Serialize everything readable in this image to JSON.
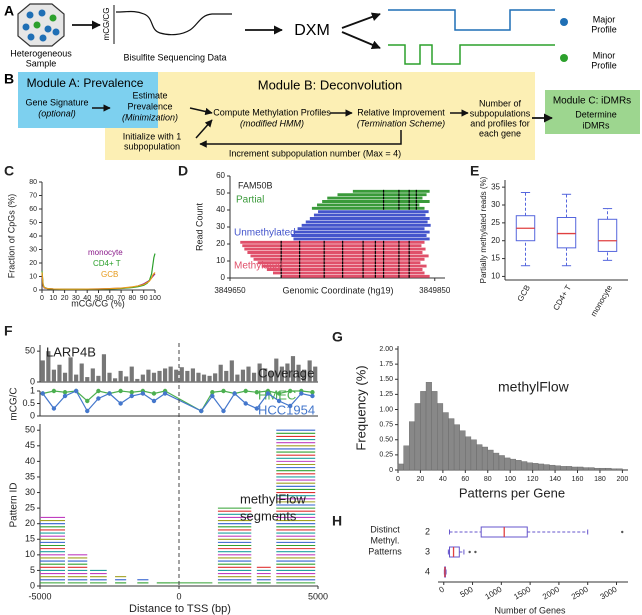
{
  "diagram": {
    "panel_a": {
      "label": "A",
      "sample": [
        "Heterogeneous",
        "Sample"
      ],
      "axis_label": "mCG/CG",
      "data_label": "Bisulfite Sequencing Data",
      "method": "DXM",
      "major": [
        "Major",
        "Profile"
      ],
      "minor": [
        "Minor",
        "Profile"
      ]
    },
    "panel_b": {
      "label": "B",
      "module_a": {
        "title": "Module A: Prevalence",
        "input": [
          "Gene Signature",
          "(optional)"
        ],
        "step": [
          "Estimate",
          "Prevalence",
          "(Minimization)"
        ]
      },
      "module_b": {
        "title": "Module B: Deconvolution",
        "init": [
          "Initialize with 1",
          "subpopulation"
        ],
        "compute": [
          "Compute Methylation Profiles",
          "(modified HMM)"
        ],
        "improve": [
          "Relative Improvement",
          "(Termination Scheme)"
        ],
        "loop": "Increment subpopulation number (Max = 4)",
        "output": [
          "Number of",
          "subpopulations",
          "and profiles for",
          "each gene"
        ]
      },
      "module_c": {
        "title": "Module C: iDMRs",
        "step": [
          "Determine",
          "iDMRs"
        ]
      }
    }
  },
  "chart_data": [
    {
      "type": "line",
      "panel": "C",
      "y_label": "Fraction of CpGs (%)",
      "x_label": "mCG/CG (%)",
      "x": [
        0,
        1,
        2,
        5,
        10,
        20,
        30,
        40,
        50,
        60,
        70,
        80,
        85,
        90,
        93,
        95,
        97,
        98,
        99,
        100
      ],
      "xlim": [
        0,
        100
      ],
      "xticks": [
        0,
        10,
        20,
        30,
        40,
        50,
        60,
        70,
        80,
        90,
        100
      ],
      "ylim": [
        0,
        80
      ],
      "yticks": [
        0,
        10,
        20,
        30,
        40,
        50,
        60,
        70,
        80
      ],
      "series": [
        {
          "name": "monocyte",
          "color": "#8b1a8b",
          "values": [
            11,
            3,
            1.5,
            1,
            0.8,
            0.6,
            0.6,
            0.7,
            0.8,
            1,
            1.3,
            2,
            3,
            4.5,
            6,
            7,
            9,
            10,
            11,
            12
          ]
        },
        {
          "name": "CD4+ T",
          "color": "#2ca02c",
          "values": [
            14,
            4,
            2,
            1,
            0.7,
            0.5,
            0.5,
            0.6,
            0.7,
            0.8,
            1.1,
            1.8,
            2.5,
            3.5,
            5,
            7,
            12,
            18,
            24,
            27
          ]
        },
        {
          "name": "GCB",
          "color": "#e69a1a",
          "values": [
            13,
            3.5,
            1.8,
            1,
            0.8,
            0.6,
            0.6,
            0.7,
            0.8,
            1,
            1.4,
            2.3,
            3,
            4,
            5.5,
            6.5,
            9,
            11,
            12,
            13
          ]
        }
      ]
    },
    {
      "type": "reads",
      "panel": "D",
      "title": "FAM50B",
      "y_label": "Read Count",
      "x_label": "Genomic Coordinate (hg19)",
      "xlim": [
        3849650,
        3849860
      ],
      "xticks": [
        3849650,
        3849850
      ],
      "ylim": [
        0,
        60
      ],
      "yticks": [
        0,
        10,
        20,
        30,
        40,
        50,
        60
      ],
      "series": [
        {
          "name": "Partial",
          "color": "#3a9a3a",
          "y": [
            41,
            43,
            45,
            47,
            49,
            51
          ],
          "start": [
            3849730,
            3849735,
            3849740,
            3849745,
            3849755,
            3849770
          ],
          "end": [
            3849840,
            3849835,
            3849845,
            3849838,
            3849842,
            3849845
          ],
          "methylated_sites": [
            3849800,
            3849815,
            3849825,
            3849832
          ]
        },
        {
          "name": "Unmethylated",
          "color": "#4455cc",
          "y": [
            23,
            25,
            27,
            29,
            31,
            33,
            35,
            37,
            39
          ],
          "start": [
            3849712,
            3849710,
            3849712,
            3849716,
            3849720,
            3849724,
            3849728,
            3849732,
            3849736
          ],
          "end": [
            3849845,
            3849842,
            3849845,
            3849840,
            3849846,
            3849843,
            3849845,
            3849841,
            3849844
          ]
        },
        {
          "name": "Methylated",
          "color": "#e0506a",
          "y": [
            1,
            3,
            5,
            7,
            9,
            11,
            13,
            15,
            17,
            19,
            21
          ],
          "start": [
            3849700,
            3849692,
            3849686,
            3849681,
            3849677,
            3849673,
            3849670,
            3849667,
            3849664,
            3849662,
            3849660
          ],
          "end": [
            3849845,
            3849840,
            3849838,
            3849842,
            3849836,
            3849840,
            3849844,
            3849838,
            3849841,
            3849837,
            3849840
          ],
          "methylated_sites": [
            3849700,
            3849718,
            3849742,
            3849760,
            3849780,
            3849792,
            3849800,
            3849815,
            3849825
          ]
        }
      ]
    },
    {
      "type": "box",
      "panel": "E",
      "y_label": "Partially methylated reads (%)",
      "categories": [
        "GCB",
        "CD4+ T",
        "monocyte"
      ],
      "ylim": [
        9,
        37
      ],
      "yticks": [
        10,
        15,
        20,
        25,
        30,
        35
      ],
      "box_color": "#5566dd",
      "median_color": "#e04040",
      "min": [
        13,
        13,
        14.5
      ],
      "q1": [
        20,
        18,
        17
      ],
      "median": [
        23.5,
        22,
        20
      ],
      "q3": [
        27,
        26.5,
        26
      ],
      "max": [
        33.5,
        33,
        29
      ]
    },
    {
      "type": "bar",
      "panel": "F",
      "title": "LARP4B",
      "label": "Coverage",
      "color": "#777777",
      "x": [
        -4900,
        -4700,
        -4500,
        -4300,
        -4100,
        -3900,
        -3700,
        -3500,
        -3300,
        -3100,
        -2900,
        -2700,
        -2500,
        -2300,
        -2100,
        -1900,
        -1700,
        -1500,
        -1300,
        -1100,
        -900,
        -700,
        -500,
        -300,
        -100,
        100,
        300,
        500,
        700,
        900,
        1100,
        1300,
        1500,
        1700,
        1900,
        2100,
        2300,
        2500,
        2700,
        2900,
        3100,
        3300,
        3500,
        3700,
        3900,
        4100,
        4300,
        4500,
        4700,
        4900
      ],
      "values": [
        35,
        50,
        20,
        28,
        15,
        40,
        12,
        30,
        8,
        22,
        10,
        45,
        15,
        6,
        18,
        9,
        25,
        5,
        12,
        20,
        15,
        18,
        22,
        25,
        20,
        24,
        18,
        22,
        15,
        12,
        10,
        14,
        28,
        18,
        35,
        12,
        20,
        25,
        15,
        30,
        22,
        18,
        38,
        25,
        30,
        42,
        28,
        20,
        35,
        25
      ],
      "xlim": [
        -5000,
        5000
      ],
      "ylim": [
        0,
        60
      ],
      "yticks": [
        0,
        50
      ]
    },
    {
      "type": "line",
      "y_label": "mCG/C",
      "x": [
        -4900,
        -4500,
        -4100,
        -3700,
        -3300,
        -2900,
        -2500,
        -2100,
        -1700,
        -1300,
        -900,
        -500,
        800,
        1200,
        1600,
        2000,
        2400,
        2800,
        3200,
        3600,
        4000,
        4400,
        4800
      ],
      "xlim": [
        -5000,
        5000
      ],
      "ylim": [
        0,
        1
      ],
      "yticks": [
        0,
        0.5,
        1
      ],
      "series": [
        {
          "name": "HMEC",
          "color": "#4caf50",
          "values": [
            0.9,
            1,
            0.95,
            1,
            0.6,
            1,
            0.9,
            1,
            0.95,
            1,
            0.9,
            1,
            0.2,
            0.95,
            1,
            0.9,
            1,
            0.95,
            1,
            0.9,
            1,
            1,
            0.95
          ]
        },
        {
          "name": "HCC1954",
          "color": "#4477cc",
          "values": [
            0.9,
            0.3,
            0.8,
            1,
            0.2,
            0.7,
            0.9,
            0.5,
            0.8,
            0.9,
            0.6,
            0.9,
            0.2,
            0.8,
            0.2,
            0.9,
            0.5,
            0.3,
            0.9,
            0.6,
            0.4,
            0.9,
            0.8
          ]
        }
      ]
    },
    {
      "type": "segments",
      "y_label": "Pattern ID",
      "x_label": "Distance to TSS (bp)",
      "label": [
        "methylFlow",
        "segments"
      ],
      "xlim": [
        -5000,
        5000
      ],
      "xticks": [
        -5000,
        0,
        5000
      ],
      "ylim": [
        0,
        52
      ],
      "yticks": [
        0,
        5,
        10,
        15,
        20,
        25,
        30,
        35,
        40,
        45,
        50
      ],
      "colors": [
        "#e03030",
        "#30a030",
        "#3060d0",
        "#a0a020",
        "#c040c0",
        "#20a0a0"
      ],
      "segments": [
        {
          "start": -5000,
          "end": -4100,
          "patterns": 22
        },
        {
          "start": -4000,
          "end": -3300,
          "patterns": 10
        },
        {
          "start": -3200,
          "end": -2600,
          "patterns": 5
        },
        {
          "start": -2300,
          "end": -1900,
          "patterns": 3
        },
        {
          "start": -1500,
          "end": -1100,
          "patterns": 2
        },
        {
          "start": -800,
          "end": -300,
          "patterns": 1
        },
        {
          "start": -300,
          "end": 1200,
          "patterns": 1
        },
        {
          "start": 1400,
          "end": 2600,
          "patterns": 25
        },
        {
          "start": 2800,
          "end": 3300,
          "patterns": 6
        },
        {
          "start": 3500,
          "end": 4900,
          "patterns": 50
        }
      ]
    },
    {
      "type": "histogram",
      "panel": "G",
      "title": "methylFlow",
      "y_label": "Frequency (%)",
      "x_label": "Patterns per Gene",
      "color": "#888888",
      "bins": [
        0,
        5,
        10,
        15,
        20,
        25,
        30,
        35,
        40,
        45,
        50,
        55,
        60,
        65,
        70,
        75,
        80,
        85,
        90,
        95,
        100,
        105,
        110,
        115,
        120,
        125,
        130,
        135,
        140,
        145,
        150,
        155,
        160,
        165,
        170,
        175,
        180,
        185,
        190,
        195,
        200
      ],
      "values": [
        0.1,
        0.4,
        0.8,
        1.1,
        1.3,
        1.45,
        1.3,
        1.1,
        0.95,
        0.85,
        0.75,
        0.65,
        0.55,
        0.5,
        0.42,
        0.38,
        0.33,
        0.28,
        0.24,
        0.2,
        0.18,
        0.16,
        0.14,
        0.12,
        0.11,
        0.1,
        0.09,
        0.08,
        0.07,
        0.06,
        0.06,
        0.05,
        0.05,
        0.04,
        0.04,
        0.03,
        0.03,
        0.03,
        0.02,
        0.02
      ],
      "xlim": [
        0,
        205
      ],
      "xticks": [
        0,
        20,
        40,
        60,
        80,
        100,
        120,
        140,
        160,
        180,
        200
      ],
      "ylim": [
        0,
        2.05
      ],
      "yticks": [
        0,
        0.25,
        {
          "value": 0.5,
          "label": "0.50"
        },
        0.75,
        {
          "value": 1,
          "label": "1.00"
        },
        1.25,
        {
          "value": 1.5,
          "label": "1.50"
        },
        1.75,
        {
          "value": 2,
          "label": "2.00"
        }
      ]
    },
    {
      "type": "box",
      "orientation": "horizontal",
      "panel": "H",
      "y_label": [
        "Distinct",
        "Methyl.",
        "Patterns"
      ],
      "x_label": "Number of Genes",
      "categories": [
        "2",
        "3",
        "4"
      ],
      "xlim": [
        -100,
        3200
      ],
      "xticks": [
        0,
        500,
        1000,
        1500,
        2000,
        2500,
        3000
      ],
      "box_color": "#6655cc",
      "median_color": "#e04040",
      "min": [
        100,
        80,
        10
      ],
      "q1": [
        650,
        100,
        15
      ],
      "median": [
        1050,
        170,
        20
      ],
      "q3": [
        1450,
        270,
        30
      ],
      "max": [
        2500,
        350,
        40
      ],
      "outliers": [
        {
          "category": "2",
          "value": 3100
        },
        {
          "category": "3",
          "value": 450
        },
        {
          "category": "3",
          "value": 550
        }
      ]
    }
  ]
}
